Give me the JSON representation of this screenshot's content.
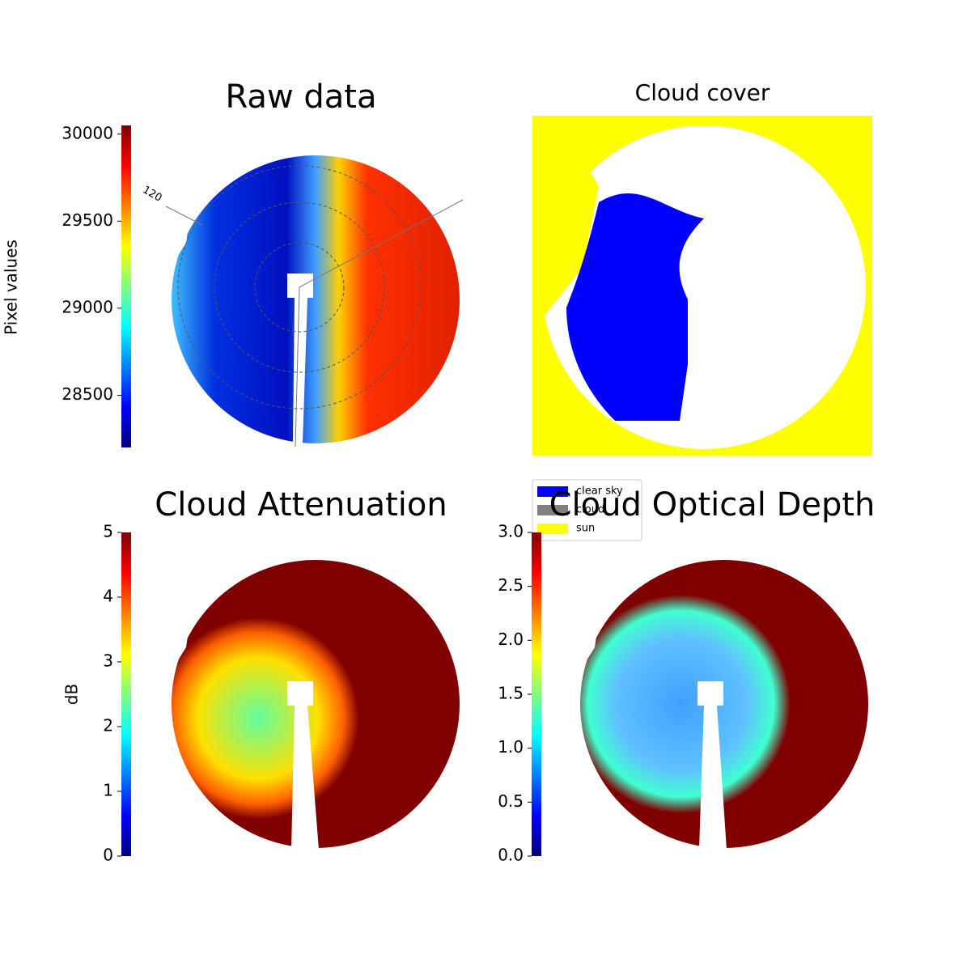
{
  "chart_data": [
    {
      "type": "image",
      "title": "Raw data",
      "colormap": "jet",
      "ylabel": "Pixel values",
      "ylim": [
        28200,
        30050
      ],
      "yticks": [
        28500,
        29000,
        29500,
        30000
      ],
      "annotations": [
        "120"
      ]
    },
    {
      "type": "image",
      "title": "Cloud cover",
      "background": "#ffff00",
      "classes": [
        {
          "name": "clear sky",
          "color": "#0000ff"
        },
        {
          "name": "cloud",
          "color": "#808080"
        },
        {
          "name": "sun",
          "color": "#ffff00"
        }
      ]
    },
    {
      "type": "image",
      "title": "Cloud Attenuation",
      "colormap": "jet",
      "ylabel": "dB",
      "ylim": [
        0,
        5
      ],
      "yticks": [
        0,
        1,
        2,
        3,
        4,
        5
      ]
    },
    {
      "type": "image",
      "title": "Cloud Optical Depth",
      "colormap": "jet",
      "ylim": [
        0,
        3
      ],
      "yticks": [
        {
          "value": 0,
          "label": "0.0"
        },
        {
          "value": 0.5,
          "label": "0.5"
        },
        {
          "value": 1,
          "label": "1.0"
        },
        {
          "value": 1.5,
          "label": "1.5"
        },
        {
          "value": 2,
          "label": "2.0"
        },
        {
          "value": 2.5,
          "label": "2.5"
        },
        {
          "value": 3,
          "label": "3.0"
        }
      ]
    }
  ]
}
